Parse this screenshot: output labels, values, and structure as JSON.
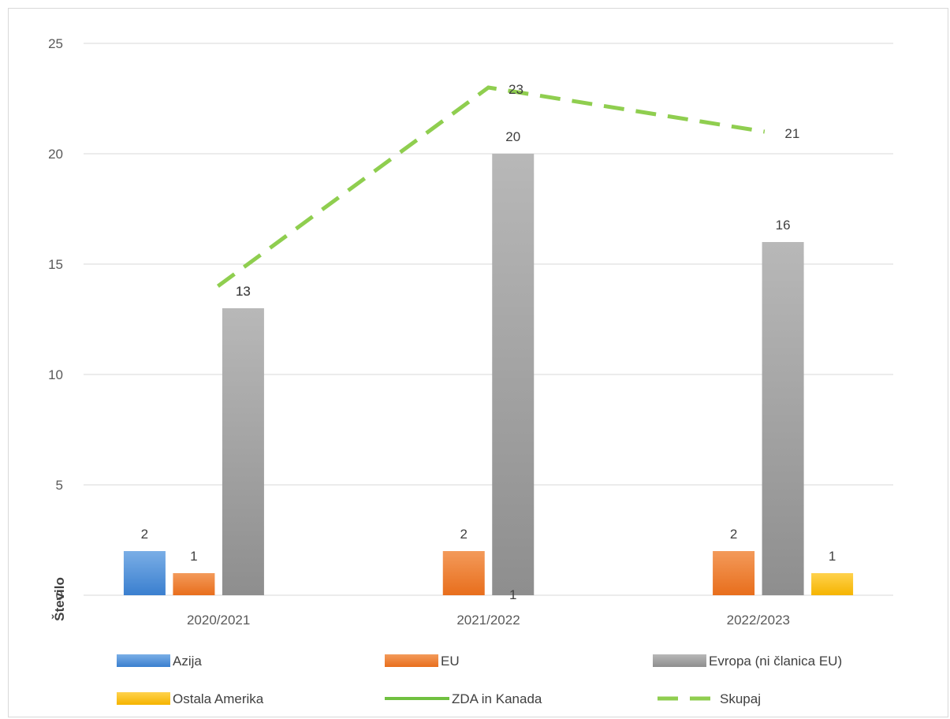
{
  "chart_data": {
    "type": "bar",
    "categories": [
      "2020/2021",
      "2021/2022",
      "2022/2023"
    ],
    "ylabel": "Število",
    "xlabel": "",
    "ylim": [
      0,
      25
    ],
    "yticks": [
      0,
      5,
      10,
      15,
      20,
      25
    ],
    "grid": true,
    "legend_position": "bottom",
    "series": [
      {
        "name": "Azija",
        "kind": "bar",
        "color": "#4f8fd6",
        "values": [
          2,
          0,
          0
        ]
      },
      {
        "name": "EU",
        "kind": "bar",
        "color": "#ed7d31",
        "values": [
          1,
          2,
          2
        ]
      },
      {
        "name": "Evropa (ni članica EU)",
        "kind": "bar",
        "color": "#9e9e9e",
        "values": [
          13,
          20,
          16
        ]
      },
      {
        "name": "Ostala Amerika",
        "kind": "bar",
        "color": "#ffc000",
        "values": [
          0,
          0,
          1
        ]
      },
      {
        "name": "ZDA in Kanada",
        "kind": "line",
        "color": "#70c040",
        "values": [
          13,
          1,
          null
        ]
      },
      {
        "name": "Skupaj",
        "kind": "dashed-line",
        "color": "#8fce4f",
        "values": [
          14,
          23,
          21
        ]
      }
    ],
    "data_labels": [
      {
        "category": "2020/2021",
        "series": "Azija",
        "text": "2"
      },
      {
        "category": "2020/2021",
        "series": "EU",
        "text": "1"
      },
      {
        "category": "2020/2021",
        "series": "Evropa (ni članica EU)",
        "text": "13"
      },
      {
        "category": "2020/2021",
        "series": "ZDA in Kanada",
        "text": "13"
      },
      {
        "category": "2021/2022",
        "series": "EU",
        "text": "2"
      },
      {
        "category": "2021/2022",
        "series": "Evropa (ni članica EU)",
        "text": "20"
      },
      {
        "category": "2021/2022",
        "series": "ZDA in Kanada",
        "text": "1"
      },
      {
        "category": "2021/2022",
        "series": "Skupaj",
        "text": "23"
      },
      {
        "category": "2022/2023",
        "series": "EU",
        "text": "2"
      },
      {
        "category": "2022/2023",
        "series": "Evropa (ni članica EU)",
        "text": "16"
      },
      {
        "category": "2022/2023",
        "series": "Ostala Amerika",
        "text": "1"
      },
      {
        "category": "2022/2023",
        "series": "Skupaj",
        "text": "21"
      }
    ]
  }
}
